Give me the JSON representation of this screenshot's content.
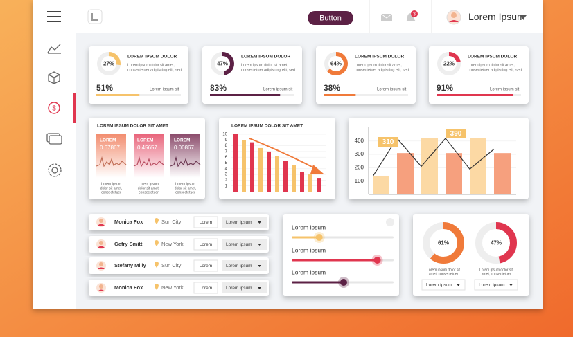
{
  "header": {
    "button": "Button",
    "badge": "3",
    "user": "Lorem Ipsum"
  },
  "kpis": [
    {
      "percent": 27,
      "percent_label": "27%",
      "title": "LOREM IPSUM DOLOR",
      "text": [
        "Lorem ipsum dolor sit amet,",
        "consectetuer adipiscing elit, sed"
      ],
      "value": 51,
      "value_label": "51%",
      "caption": "Lorem ipsum sit",
      "color": "#f6c36b"
    },
    {
      "percent": 47,
      "percent_label": "47%",
      "title": "LOREM IPSUM DOLOR",
      "text": [
        "Lorem ipsum dolor sit amet,",
        "consectetuer adipiscing elit, sed"
      ],
      "value": 83,
      "value_label": "83%",
      "caption": "Lorem ipsum sit",
      "color": "#5c2145"
    },
    {
      "percent": 64,
      "percent_label": "64%",
      "title": "LOREM IPSUM DOLOR",
      "text": [
        "Lorem ipsum dolor sit amet,",
        "consectetuer adipiscing elit, sed"
      ],
      "value": 38,
      "value_label": "38%",
      "caption": "Lorem ipsum sit",
      "color": "#f07a3a"
    },
    {
      "percent": 22,
      "percent_label": "22%",
      "title": "LOREM IPSUM DOLOR",
      "text": [
        "Lorem ipsum dolor sit amet,",
        "consectetuer adipiscing elit, sed"
      ],
      "value": 91,
      "value_label": "91%",
      "caption": "Lorem ipsum sit",
      "color": "#e0364f"
    }
  ],
  "mini_cards": {
    "title": "LOREM IPSUM DOLOR SIT AMET",
    "items": [
      {
        "label": "LOREM",
        "value": "0.67867",
        "caption": [
          "Lorem ipsum",
          "dolor sit amet,",
          "consectetuer"
        ],
        "color": "#f28c6e"
      },
      {
        "label": "LOREM",
        "value": "0.45657",
        "caption": [
          "Lorem ipsum",
          "dolor sit amet,",
          "consectetuer"
        ],
        "color": "#e8637a"
      },
      {
        "label": "LOREM",
        "value": "0.00867",
        "caption": [
          "Lorem ipsum",
          "dolor sit amet,",
          "consectetuer"
        ],
        "color": "#8a4a6a"
      }
    ]
  },
  "bar_chart": {
    "type": "bar",
    "title": "LOREM IPSUM DOLOR SIT AMET",
    "values": [
      10,
      9,
      8.6,
      7.6,
      7,
      6.2,
      5.4,
      4.6,
      3.4,
      3,
      2.4
    ],
    "colors": [
      "#e0364f",
      "#f6c36b"
    ],
    "ylim": [
      0,
      10
    ],
    "yticks": [
      1,
      2,
      3,
      4,
      5,
      6,
      7,
      8,
      9,
      10
    ]
  },
  "combo_chart": {
    "type": "bar",
    "values": [
      140,
      310,
      420,
      310,
      420,
      310
    ],
    "colors": [
      "#fcd9a4",
      "#f6a07e"
    ],
    "line": [
      135,
      420,
      210,
      420,
      190,
      340
    ],
    "line_color": "#333333",
    "ylim": [
      0,
      500
    ],
    "yticks": [
      100,
      200,
      300,
      400
    ],
    "callouts": [
      310,
      390
    ],
    "callout_color": "#f6c36b"
  },
  "people": [
    {
      "name": "Monica Fox",
      "city": "Sun City",
      "button": "Lorem",
      "select": "Lorem ipsum"
    },
    {
      "name": "Gefry Smitt",
      "city": "New York",
      "button": "Lorem",
      "select": "Lorem ipsum"
    },
    {
      "name": "Stefany Milly",
      "city": "Sun City",
      "button": "Lorem",
      "select": "Lorem ipsum"
    },
    {
      "name": "Monica Fox",
      "city": "New York",
      "button": "Lorem",
      "select": "Lorem ipsum"
    }
  ],
  "sliders": [
    {
      "label": "Lorem ipsum",
      "value": 27,
      "color": "#f6c36b"
    },
    {
      "label": "Lorem ipsum",
      "value": 84,
      "color": "#e0364f"
    },
    {
      "label": "Lorem ipsum",
      "value": 51,
      "color": "#5c2145"
    }
  ],
  "donuts": [
    {
      "value": 61,
      "label": "61%",
      "caption": [
        "Lorem ipsum dolor sit",
        "amet, consectetuer"
      ],
      "select": "Lorem ipsum",
      "color": "#f07a3a"
    },
    {
      "value": 47,
      "label": "47%",
      "caption": [
        "Lorem ipsum dolor sit",
        "amet, consectetuer"
      ],
      "select": "Lorem ipsum",
      "color": "#e0364f"
    }
  ]
}
